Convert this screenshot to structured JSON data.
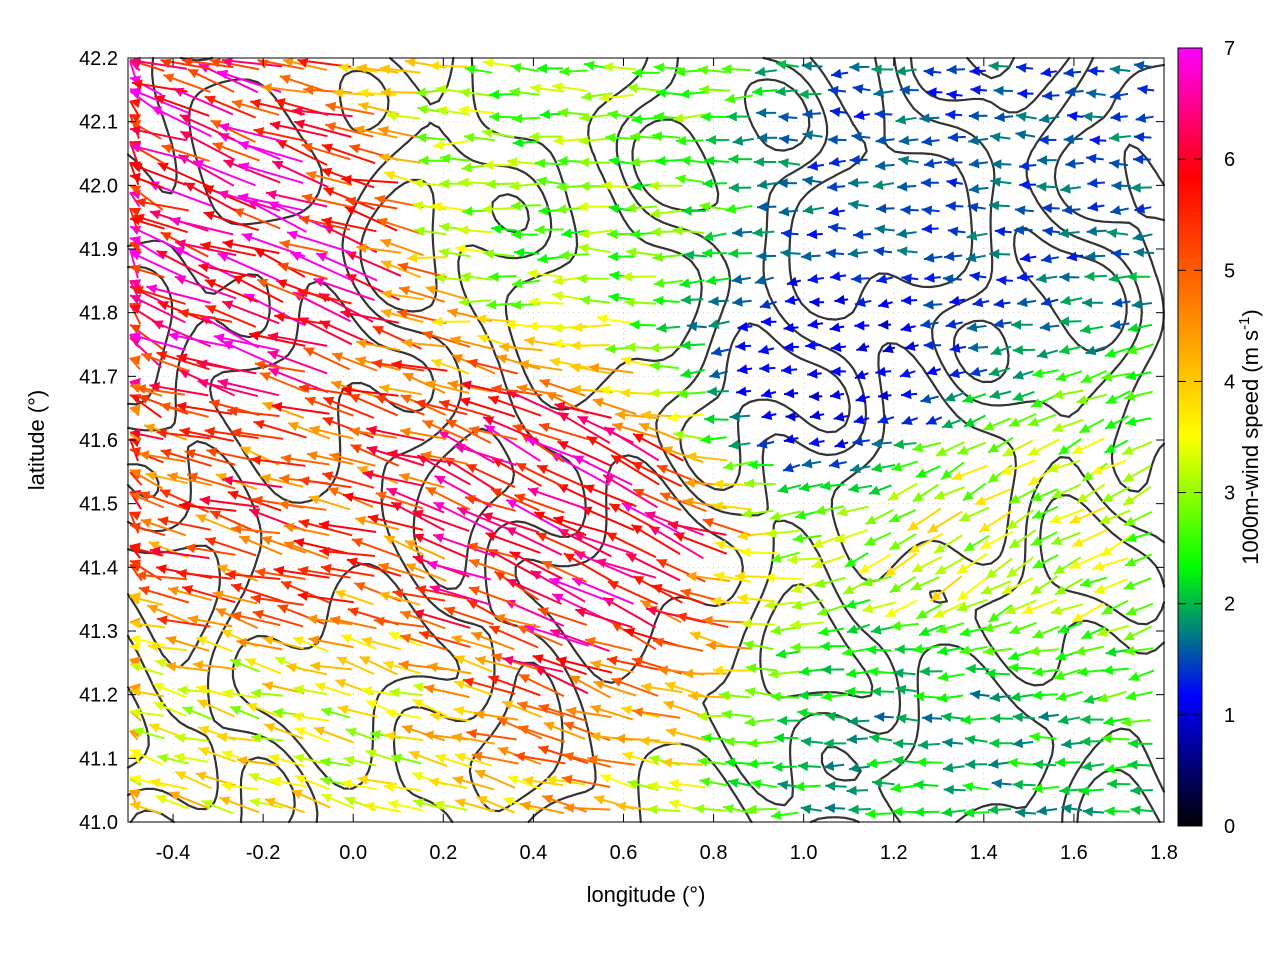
{
  "chart_data": {
    "type": "quiver",
    "title": "",
    "xlabel": "longitude (°)",
    "ylabel": "latitude (°)",
    "xlim": [
      -0.5,
      1.8
    ],
    "ylim": [
      41.0,
      42.2
    ],
    "x_ticks": [
      "-0.4",
      "-0.2",
      "0.0",
      "0.2",
      "0.4",
      "0.6",
      "0.8",
      "1.0",
      "1.2",
      "1.4",
      "1.6",
      "1.8"
    ],
    "x_tick_values": [
      -0.4,
      -0.2,
      0.0,
      0.2,
      0.4,
      0.6,
      0.8,
      1.0,
      1.2,
      1.4,
      1.6,
      1.8
    ],
    "y_ticks": [
      "41.0",
      "41.1",
      "41.2",
      "41.3",
      "41.4",
      "41.5",
      "41.6",
      "41.7",
      "41.8",
      "41.9",
      "42.0",
      "42.1",
      "42.2"
    ],
    "y_tick_values": [
      41.0,
      41.1,
      41.2,
      41.3,
      41.4,
      41.5,
      41.6,
      41.7,
      41.8,
      41.9,
      42.0,
      42.1,
      42.2
    ],
    "colorbar": {
      "label_main": "1000m-wind speed (m s",
      "label_sup": "-1",
      "label_end": ")",
      "range": [
        0,
        7
      ],
      "ticks": [
        "0",
        "1",
        "2",
        "3",
        "4",
        "5",
        "6",
        "7"
      ],
      "tick_values": [
        0,
        1,
        2,
        3,
        4,
        5,
        6,
        7
      ],
      "colors": [
        "#000000",
        "#0000ff",
        "#00ff00",
        "#ffff00",
        "#ff8000",
        "#ff0000",
        "#ff00ff"
      ]
    },
    "grid": true,
    "legend": "none",
    "contour_color": "#333333",
    "wind_regions": [
      {
        "region": "northwest",
        "lon_range": [
          -0.5,
          0.1
        ],
        "lat_range": [
          41.6,
          42.2
        ],
        "speed": 6.2,
        "direction_deg": 160
      },
      {
        "region": "west-central",
        "lon_range": [
          -0.5,
          0.2
        ],
        "lat_range": [
          41.3,
          41.6
        ],
        "speed": 5.2,
        "direction_deg": 165
      },
      {
        "region": "southwest",
        "lon_range": [
          -0.5,
          0.3
        ],
        "lat_range": [
          41.0,
          41.3
        ],
        "speed": 3.5,
        "direction_deg": 165
      },
      {
        "region": "central",
        "lon_range": [
          0.3,
          0.8
        ],
        "lat_range": [
          41.3,
          41.6
        ],
        "speed": 6.0,
        "direction_deg": 155
      },
      {
        "region": "north-central",
        "lon_range": [
          0.2,
          0.8
        ],
        "lat_range": [
          41.8,
          42.2
        ],
        "speed": 2.8,
        "direction_deg": 180
      },
      {
        "region": "northeast",
        "lon_range": [
          0.8,
          1.8
        ],
        "lat_range": [
          41.8,
          42.2
        ],
        "speed": 1.5,
        "direction_deg": 180
      },
      {
        "region": "east-central",
        "lon_range": [
          0.8,
          1.4
        ],
        "lat_range": [
          41.6,
          41.8
        ],
        "speed": 1.0,
        "direction_deg": 190
      },
      {
        "region": "southeast",
        "lon_range": [
          0.8,
          1.8
        ],
        "lat_range": [
          41.0,
          41.3
        ],
        "speed": 2.0,
        "direction_deg": 178
      },
      {
        "region": "east",
        "lon_range": [
          1.0,
          1.8
        ],
        "lat_range": [
          41.3,
          41.6
        ],
        "speed": 3.3,
        "direction_deg": 210
      }
    ]
  }
}
